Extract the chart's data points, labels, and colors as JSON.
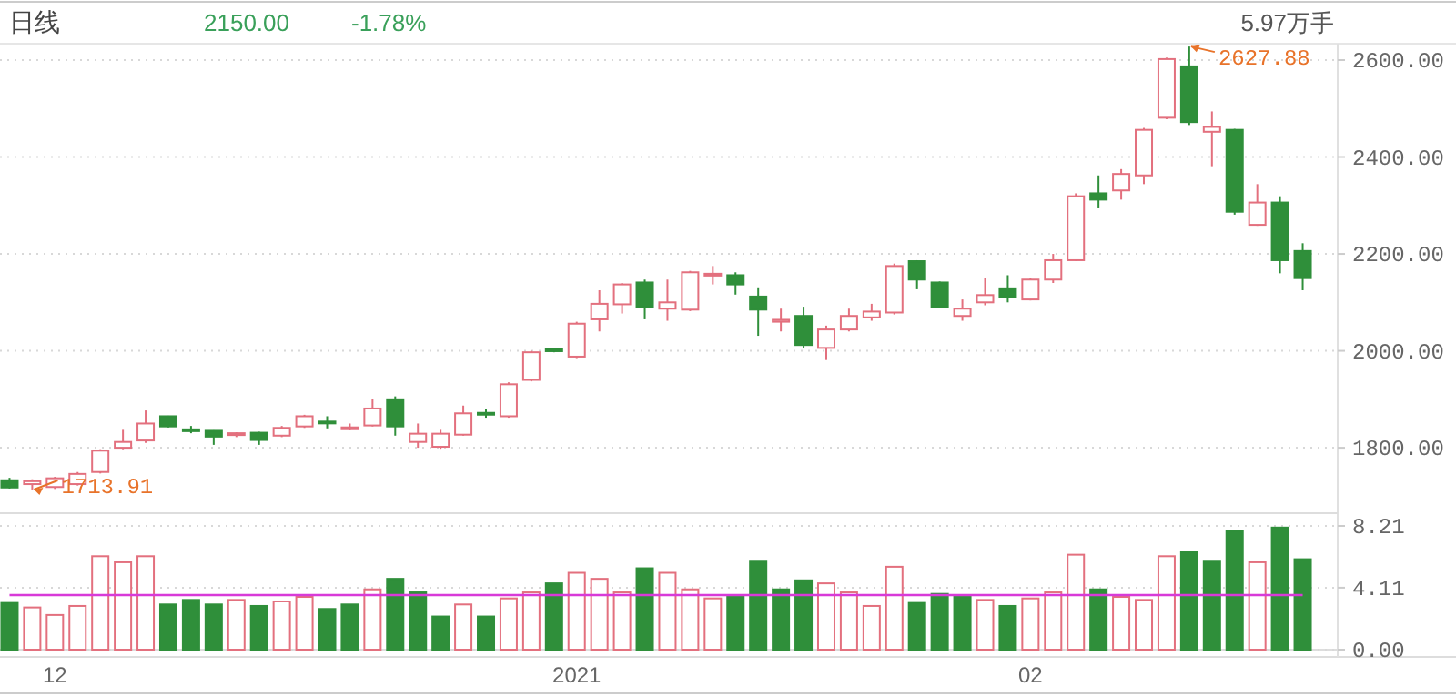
{
  "chart_data": [
    {
      "type": "candlestick",
      "title": "日线",
      "annotations": [
        "2150.00",
        "-1.78%",
        "5.97万手",
        "2627.88",
        "1713.91"
      ],
      "categories": [
        null,
        null,
        null,
        null,
        null,
        null,
        null,
        null,
        null,
        null,
        null,
        null,
        null,
        null,
        null,
        null,
        null,
        null,
        null,
        null,
        null,
        null,
        null,
        null,
        null,
        null,
        null,
        null,
        null,
        null,
        null,
        null,
        null,
        null,
        null,
        null,
        null,
        null,
        null,
        null,
        null,
        null,
        null,
        null,
        null,
        null,
        null,
        null,
        null,
        null,
        null,
        null,
        null,
        null,
        null,
        null,
        null,
        null
      ],
      "ohlc": [
        [
          1733,
          1738,
          1716,
          1718
        ],
        [
          1725,
          1735,
          1713.91,
          1731
        ],
        [
          1719,
          1740,
          1715,
          1737
        ],
        [
          1725,
          1750,
          1722,
          1746
        ],
        [
          1750,
          1797,
          1747,
          1794
        ],
        [
          1800,
          1837,
          1797,
          1812
        ],
        [
          1815,
          1877,
          1810,
          1850
        ],
        [
          1865,
          1866,
          1842,
          1844
        ],
        [
          1838,
          1845,
          1830,
          1836
        ],
        [
          1835,
          1836,
          1806,
          1823
        ],
        [
          1827,
          1832,
          1822,
          1830
        ],
        [
          1831,
          1833,
          1806,
          1816
        ],
        [
          1825,
          1845,
          1822,
          1841
        ],
        [
          1844,
          1868,
          1841,
          1865
        ],
        [
          1854,
          1865,
          1840,
          1851
        ],
        [
          1840,
          1850,
          1836,
          1842
        ],
        [
          1846,
          1900,
          1844,
          1881
        ],
        [
          1900,
          1906,
          1825,
          1844
        ],
        [
          1812,
          1850,
          1800,
          1829
        ],
        [
          1802,
          1837,
          1798,
          1829
        ],
        [
          1827,
          1887,
          1825,
          1871
        ],
        [
          1872,
          1880,
          1862,
          1869
        ],
        [
          1865,
          1935,
          1862,
          1931
        ],
        [
          1940,
          2000,
          1937,
          1997
        ],
        [
          2003,
          2006,
          1997,
          2000
        ],
        [
          1988,
          2060,
          1985,
          2056
        ],
        [
          2065,
          2125,
          2040,
          2097
        ],
        [
          2096,
          2140,
          2077,
          2137
        ],
        [
          2141,
          2147,
          2065,
          2091
        ],
        [
          2087,
          2147,
          2062,
          2100
        ],
        [
          2085,
          2165,
          2082,
          2162
        ],
        [
          2156,
          2175,
          2137,
          2159
        ],
        [
          2156,
          2162,
          2116,
          2137
        ],
        [
          2112,
          2131,
          2031,
          2085
        ],
        [
          2060,
          2087,
          2040,
          2064
        ],
        [
          2072,
          2091,
          2006,
          2012
        ],
        [
          2006,
          2052,
          1981,
          2044
        ],
        [
          2044,
          2087,
          2040,
          2072
        ],
        [
          2069,
          2097,
          2062,
          2081
        ],
        [
          2079,
          2180,
          2075,
          2175
        ],
        [
          2185,
          2187,
          2127,
          2147
        ],
        [
          2141,
          2143,
          2088,
          2091
        ],
        [
          2072,
          2106,
          2062,
          2087
        ],
        [
          2100,
          2150,
          2094,
          2115
        ],
        [
          2129,
          2156,
          2100,
          2110
        ],
        [
          2106,
          2150,
          2104,
          2147
        ],
        [
          2147,
          2200,
          2140,
          2187
        ],
        [
          2187,
          2325,
          2185,
          2319
        ],
        [
          2325,
          2362,
          2294,
          2312
        ],
        [
          2331,
          2375,
          2312,
          2365
        ],
        [
          2362,
          2460,
          2344,
          2456
        ],
        [
          2481,
          2605,
          2478,
          2602
        ],
        [
          2587,
          2627.88,
          2466,
          2472
        ],
        [
          2452,
          2494,
          2381,
          2462
        ],
        [
          2456,
          2458,
          2281,
          2287
        ],
        [
          2260,
          2344,
          2258,
          2306
        ],
        [
          2306,
          2319,
          2160,
          2187
        ],
        [
          2206,
          2222,
          2125,
          2150
        ]
      ],
      "colors": [
        "#2f8f3a",
        "#e3707e",
        "#e3707e",
        "#e3707e",
        "#e3707e",
        "#e3707e",
        "#e3707e",
        "#2f8f3a",
        "#2f8f3a",
        "#2f8f3a",
        "#e3707e",
        "#2f8f3a",
        "#e3707e",
        "#e3707e",
        "#2f8f3a",
        "#e3707e",
        "#e3707e",
        "#2f8f3a",
        "#e3707e",
        "#e3707e",
        "#e3707e",
        "#2f8f3a",
        "#e3707e",
        "#e3707e",
        "#2f8f3a",
        "#e3707e",
        "#e3707e",
        "#e3707e",
        "#2f8f3a",
        "#e3707e",
        "#e3707e",
        "#e3707e",
        "#2f8f3a",
        "#2f8f3a",
        "#e3707e",
        "#2f8f3a",
        "#e3707e",
        "#e3707e",
        "#e3707e",
        "#e3707e",
        "#2f8f3a",
        "#2f8f3a",
        "#e3707e",
        "#e3707e",
        "#2f8f3a",
        "#e3707e",
        "#e3707e",
        "#e3707e",
        "#2f8f3a",
        "#e3707e",
        "#e3707e",
        "#e3707e",
        "#2f8f3a",
        "#e3707e",
        "#2f8f3a",
        "#e3707e",
        "#2f8f3a",
        "#2f8f3a"
      ],
      "ylim": [
        1665,
        2630
      ],
      "yticks": [
        {
          "value": 1800,
          "label": "1800.00"
        },
        {
          "value": 2000,
          "label": "2000.00"
        },
        {
          "value": 2200,
          "label": "2200.00"
        },
        {
          "value": 2400,
          "label": "2400.00"
        },
        {
          "value": 2600,
          "label": "2600.00"
        }
      ],
      "grid": "y",
      "tick_labels": "y"
    },
    {
      "type": "bar",
      "categories": [
        null,
        null,
        "12",
        null,
        null,
        null,
        null,
        null,
        null,
        null,
        null,
        null,
        null,
        null,
        null,
        null,
        null,
        null,
        null,
        null,
        null,
        null,
        null,
        null,
        null,
        "2021",
        null,
        null,
        null,
        null,
        null,
        null,
        null,
        null,
        null,
        null,
        null,
        null,
        null,
        null,
        null,
        null,
        null,
        null,
        null,
        "02",
        null,
        null,
        null,
        null,
        null,
        null,
        null,
        null,
        null,
        null,
        null,
        null
      ],
      "series": [
        {
          "color": "#e3707e",
          "values": [
            null,
            2.8,
            2.3,
            2.9,
            6.2,
            5.8,
            6.2,
            null,
            null,
            null,
            3.3,
            null,
            3.2,
            3.5,
            null,
            null,
            4.0,
            null,
            null,
            null,
            3.0,
            null,
            3.4,
            3.8,
            null,
            5.1,
            4.7,
            3.8,
            null,
            5.1,
            4.0,
            3.4,
            null,
            null,
            null,
            null,
            4.4,
            3.8,
            2.9,
            5.5,
            null,
            null,
            null,
            3.3,
            null,
            3.4,
            3.8,
            6.3,
            null,
            3.5,
            3.3,
            6.2,
            null,
            null,
            null,
            5.8,
            null,
            null
          ]
        },
        {
          "color": "#2f8f3a",
          "values": [
            3.1,
            null,
            null,
            null,
            null,
            null,
            null,
            3.0,
            3.3,
            3.0,
            null,
            2.9,
            null,
            null,
            2.7,
            3.0,
            null,
            4.7,
            3.8,
            2.2,
            null,
            2.2,
            null,
            null,
            4.4,
            null,
            null,
            null,
            5.4,
            null,
            null,
            null,
            3.5,
            5.9,
            4.0,
            4.6,
            null,
            null,
            null,
            null,
            3.1,
            3.7,
            3.5,
            null,
            2.9,
            null,
            null,
            null,
            4.0,
            null,
            null,
            null,
            6.5,
            5.9,
            7.9,
            null,
            8.1,
            6.0
          ]
        }
      ],
      "ylim": [
        0,
        8.21
      ],
      "yticks": [
        {
          "value": 0,
          "label": "0.00"
        },
        {
          "value": 4.11,
          "label": "4.11"
        },
        {
          "value": 8.21,
          "label": "8.21"
        }
      ],
      "grid": "y",
      "ref_lines": [
        {
          "axis": "y",
          "value": 3.62,
          "color": "#d83ad8"
        }
      ]
    }
  ]
}
